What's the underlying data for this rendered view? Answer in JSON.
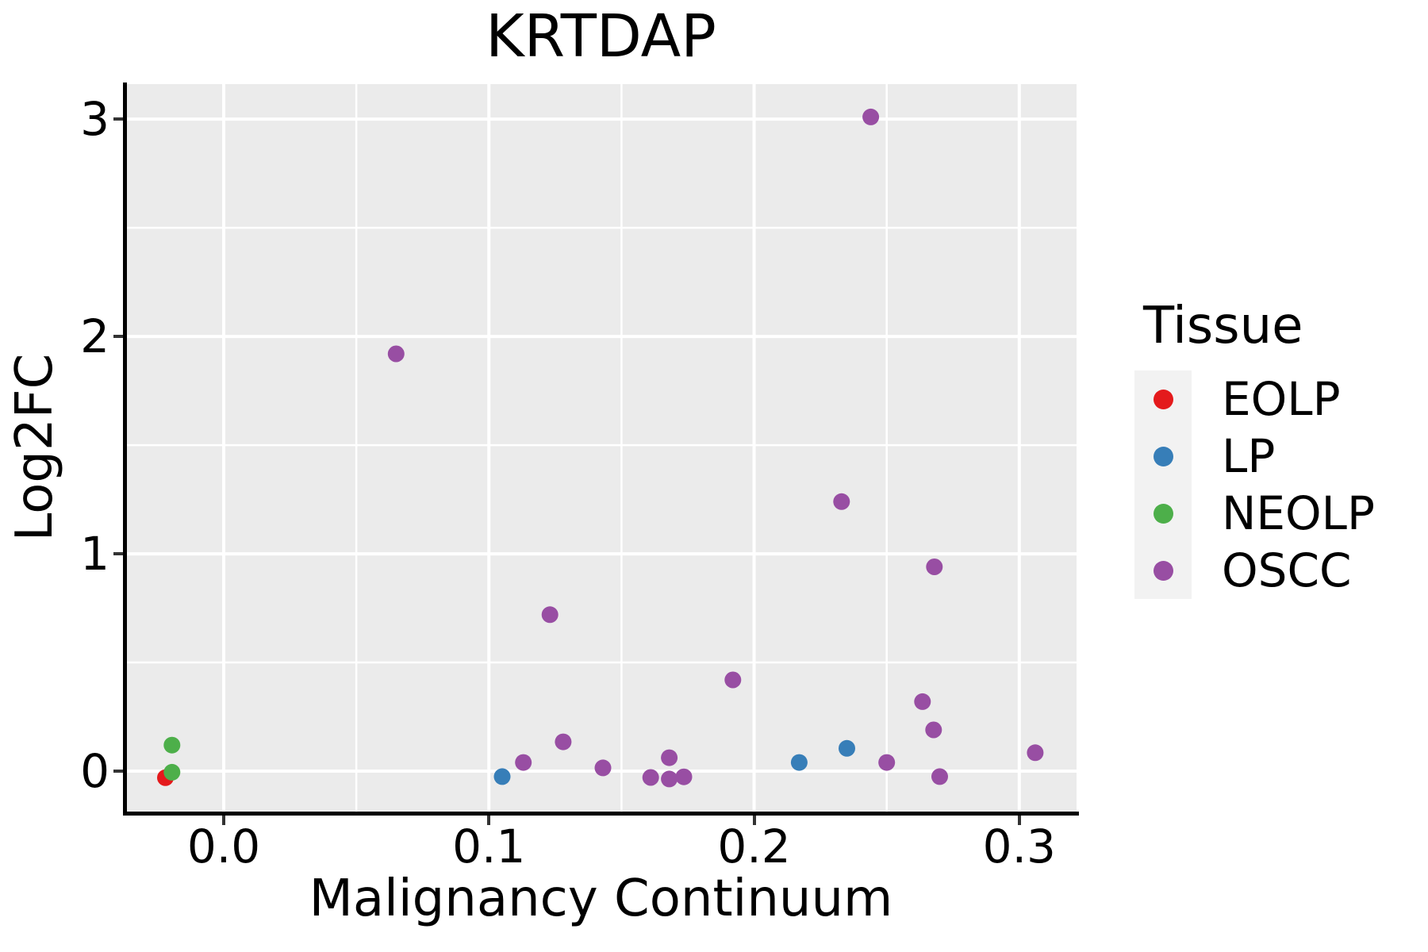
{
  "title": "KRTDAP",
  "axes": {
    "x_title": "Malignancy Continuum",
    "y_title": "Log2FC"
  },
  "legend": {
    "title": "Tissue",
    "position": "right"
  },
  "style": {
    "panel_bg": "#EBEBEB",
    "grid_color": "#FFFFFF",
    "legend_key_bg": "#F2F2F2",
    "axis_line_color": "#000000",
    "tick_color": "#333333",
    "text_color": "#000000"
  },
  "chart_data": {
    "type": "scatter",
    "title": "KRTDAP",
    "xlabel": "Malignancy Continuum",
    "ylabel": "Log2FC",
    "xlim": [
      -0.0371,
      0.3216
    ],
    "ylim": [
      -0.186,
      3.161
    ],
    "x_ticks": [
      0.0,
      0.1,
      0.2,
      0.3
    ],
    "x_tick_labels": [
      "0.0",
      "0.1",
      "0.2",
      "0.3"
    ],
    "y_ticks": [
      0,
      1,
      2,
      3
    ],
    "y_tick_labels": [
      "0",
      "1",
      "2",
      "3"
    ],
    "x_minor_ticks": [
      0.05,
      0.15,
      0.25
    ],
    "y_minor_ticks": [
      0.5,
      1.5,
      2.5
    ],
    "grid": true,
    "legend_position": "right",
    "point_radius_px": 10.5,
    "series": [
      {
        "name": "EOLP",
        "color": "#E41A1C",
        "points": [
          [
            -0.022,
            -0.03
          ]
        ]
      },
      {
        "name": "LP",
        "color": "#377EB8",
        "points": [
          [
            0.105,
            -0.025
          ],
          [
            0.217,
            0.04
          ],
          [
            0.235,
            0.105
          ]
        ]
      },
      {
        "name": "NEOLP",
        "color": "#4DAF4A",
        "points": [
          [
            -0.0195,
            -0.005
          ],
          [
            -0.0195,
            0.12
          ]
        ]
      },
      {
        "name": "OSCC",
        "color": "#984EA3",
        "points": [
          [
            0.065,
            1.92
          ],
          [
            0.113,
            0.04
          ],
          [
            0.123,
            0.72
          ],
          [
            0.128,
            0.135
          ],
          [
            0.143,
            0.015
          ],
          [
            0.161,
            -0.029
          ],
          [
            0.168,
            -0.036
          ],
          [
            0.1735,
            -0.026
          ],
          [
            0.168,
            0.062
          ],
          [
            0.192,
            0.42
          ],
          [
            0.233,
            1.24
          ],
          [
            0.244,
            3.01
          ],
          [
            0.25,
            0.04
          ],
          [
            0.2635,
            0.32
          ],
          [
            0.2677,
            0.19
          ],
          [
            0.268,
            0.94
          ],
          [
            0.27,
            -0.025
          ],
          [
            0.306,
            0.085
          ]
        ]
      }
    ]
  }
}
